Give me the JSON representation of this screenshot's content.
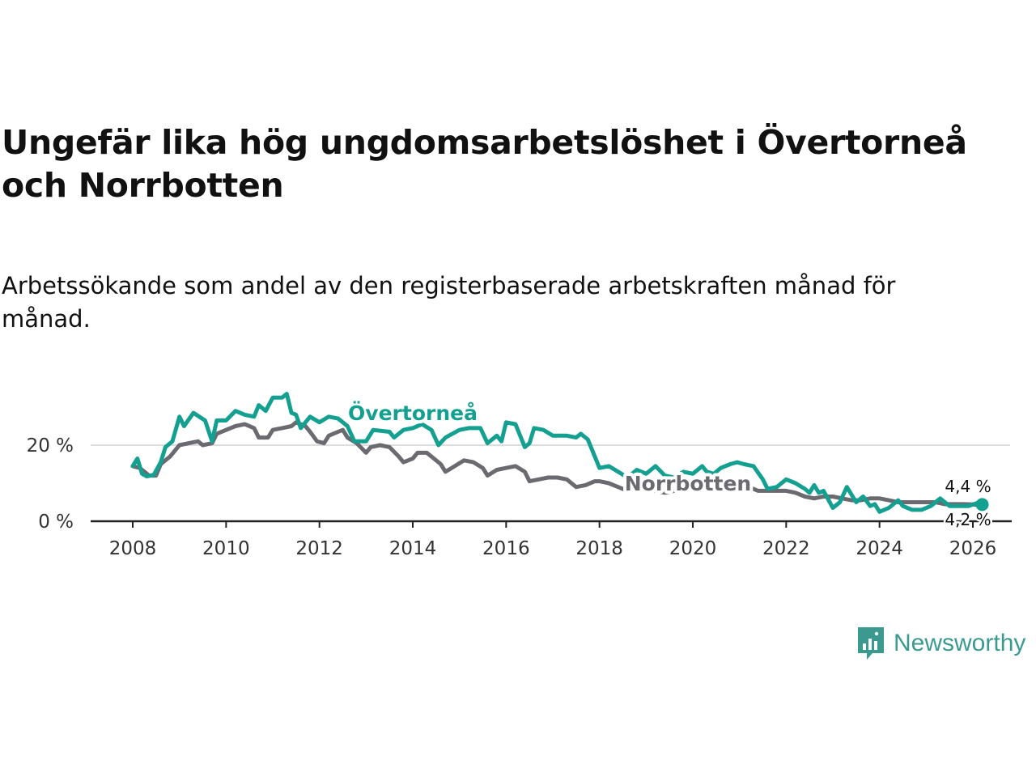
{
  "title": "Ungefär lika hög ungdomsarbetslöshet i Övertorneå och Norrbotten",
  "subtitle": "Arbetssökande som andel av den registerbaserade arbetskraften månad för månad.",
  "logo": {
    "text": "Newsworthy",
    "icon": "bar-chart-speech-bubble-icon",
    "color": "#3a9a8f"
  },
  "chart_data": {
    "type": "line",
    "title": "",
    "xlabel": "",
    "ylabel": "",
    "xlim": [
      2007.9,
      2026.3
    ],
    "ylim": [
      0,
      35
    ],
    "x_ticks": [
      2008,
      2010,
      2012,
      2014,
      2016,
      2018,
      2020,
      2022,
      2024,
      2026
    ],
    "x_tick_labels": [
      "2008",
      "2010",
      "2012",
      "2014",
      "2016",
      "2018",
      "2020",
      "2022",
      "2024",
      "2026"
    ],
    "y_ticks": [
      0,
      20
    ],
    "y_tick_labels": [
      "0 %",
      "20 %"
    ],
    "grid": "horizontal",
    "series": [
      {
        "name": "Övertorneå",
        "label": "Övertorneå",
        "color": "#14a090",
        "end_label": "4,4 %",
        "points": [
          [
            2008.0,
            14.5
          ],
          [
            2008.1,
            16.5
          ],
          [
            2008.2,
            12.5
          ],
          [
            2008.3,
            11.8
          ],
          [
            2008.45,
            12.2
          ],
          [
            2008.6,
            15.5
          ],
          [
            2008.7,
            19.5
          ],
          [
            2008.85,
            21
          ],
          [
            2009.0,
            27.5
          ],
          [
            2009.1,
            25
          ],
          [
            2009.3,
            28.5
          ],
          [
            2009.55,
            26.5
          ],
          [
            2009.7,
            21
          ],
          [
            2009.8,
            26.5
          ],
          [
            2010.0,
            26.5
          ],
          [
            2010.2,
            29
          ],
          [
            2010.4,
            28
          ],
          [
            2010.6,
            27.5
          ],
          [
            2010.7,
            30.5
          ],
          [
            2010.85,
            29
          ],
          [
            2011.0,
            32.5
          ],
          [
            2011.2,
            32.5
          ],
          [
            2011.3,
            33.5
          ],
          [
            2011.4,
            28.5
          ],
          [
            2011.5,
            28
          ],
          [
            2011.6,
            24.5
          ],
          [
            2011.8,
            27.5
          ],
          [
            2012.0,
            26
          ],
          [
            2012.2,
            27.5
          ],
          [
            2012.4,
            27
          ],
          [
            2012.6,
            25
          ],
          [
            2012.75,
            21
          ],
          [
            2013.0,
            21
          ],
          [
            2013.15,
            24
          ],
          [
            2013.5,
            23.5
          ],
          [
            2013.6,
            22
          ],
          [
            2013.8,
            24
          ],
          [
            2014.0,
            24.5
          ],
          [
            2014.2,
            25.5
          ],
          [
            2014.4,
            24
          ],
          [
            2014.55,
            20
          ],
          [
            2014.7,
            22
          ],
          [
            2015.0,
            24
          ],
          [
            2015.2,
            24.5
          ],
          [
            2015.45,
            24.5
          ],
          [
            2015.6,
            20.5
          ],
          [
            2015.8,
            22.5
          ],
          [
            2015.9,
            21
          ],
          [
            2016.0,
            26
          ],
          [
            2016.2,
            25.5
          ],
          [
            2016.4,
            19.5
          ],
          [
            2016.5,
            20.5
          ],
          [
            2016.6,
            24.5
          ],
          [
            2016.8,
            24
          ],
          [
            2017.0,
            22.5
          ],
          [
            2017.3,
            22.5
          ],
          [
            2017.5,
            22
          ],
          [
            2017.6,
            23
          ],
          [
            2017.75,
            21.5
          ],
          [
            2017.9,
            17
          ],
          [
            2018.0,
            14
          ],
          [
            2018.2,
            14.5
          ],
          [
            2018.4,
            13
          ],
          [
            2018.6,
            11.5
          ],
          [
            2018.8,
            13.5
          ],
          [
            2019.0,
            12.5
          ],
          [
            2019.2,
            14.5
          ],
          [
            2019.4,
            12
          ],
          [
            2019.6,
            11.5
          ],
          [
            2019.8,
            13
          ],
          [
            2020.0,
            12.5
          ],
          [
            2020.2,
            14.5
          ],
          [
            2020.3,
            13
          ],
          [
            2020.45,
            12.5
          ],
          [
            2020.6,
            14
          ],
          [
            2020.8,
            15
          ],
          [
            2020.95,
            15.5
          ],
          [
            2021.1,
            15
          ],
          [
            2021.3,
            14.5
          ],
          [
            2021.5,
            11
          ],
          [
            2021.6,
            8.5
          ],
          [
            2021.8,
            9
          ],
          [
            2022.0,
            11
          ],
          [
            2022.2,
            10
          ],
          [
            2022.4,
            8.5
          ],
          [
            2022.5,
            7.5
          ],
          [
            2022.6,
            9.5
          ],
          [
            2022.7,
            7.5
          ],
          [
            2022.8,
            8
          ],
          [
            2023.0,
            3.5
          ],
          [
            2023.15,
            5
          ],
          [
            2023.3,
            9
          ],
          [
            2023.5,
            5
          ],
          [
            2023.65,
            6.5
          ],
          [
            2023.8,
            4
          ],
          [
            2023.9,
            4.5
          ],
          [
            2024.0,
            2.5
          ],
          [
            2024.2,
            3.5
          ],
          [
            2024.4,
            5.5
          ],
          [
            2024.5,
            4
          ],
          [
            2024.7,
            3
          ],
          [
            2024.9,
            3
          ],
          [
            2025.1,
            4
          ],
          [
            2025.3,
            6
          ],
          [
            2025.5,
            4
          ],
          [
            2025.7,
            4
          ],
          [
            2025.9,
            4
          ],
          [
            2026.1,
            4.8
          ],
          [
            2026.2,
            4.4
          ]
        ]
      },
      {
        "name": "Norrbotten",
        "label": "Norrbotten",
        "color": "#6b6a70",
        "end_label": "4,2 %",
        "points": [
          [
            2008.0,
            14.5
          ],
          [
            2008.15,
            14
          ],
          [
            2008.35,
            12
          ],
          [
            2008.5,
            12
          ],
          [
            2008.6,
            15
          ],
          [
            2008.8,
            17
          ],
          [
            2009.0,
            20
          ],
          [
            2009.2,
            20.5
          ],
          [
            2009.4,
            21
          ],
          [
            2009.5,
            20
          ],
          [
            2009.7,
            20.5
          ],
          [
            2009.8,
            23
          ],
          [
            2010.0,
            24
          ],
          [
            2010.2,
            25
          ],
          [
            2010.4,
            25.5
          ],
          [
            2010.6,
            24.5
          ],
          [
            2010.7,
            22
          ],
          [
            2010.9,
            22
          ],
          [
            2011.0,
            24
          ],
          [
            2011.2,
            24.5
          ],
          [
            2011.4,
            25
          ],
          [
            2011.5,
            26
          ],
          [
            2011.7,
            25
          ],
          [
            2011.8,
            23.5
          ],
          [
            2011.95,
            21
          ],
          [
            2012.1,
            20.5
          ],
          [
            2012.2,
            22.5
          ],
          [
            2012.4,
            23.5
          ],
          [
            2012.5,
            24
          ],
          [
            2012.6,
            22
          ],
          [
            2012.8,
            20.5
          ],
          [
            2013.0,
            18
          ],
          [
            2013.1,
            19.5
          ],
          [
            2013.3,
            20
          ],
          [
            2013.5,
            19.5
          ],
          [
            2013.7,
            17
          ],
          [
            2013.8,
            15.5
          ],
          [
            2014.0,
            16.5
          ],
          [
            2014.1,
            18
          ],
          [
            2014.3,
            18
          ],
          [
            2014.4,
            17
          ],
          [
            2014.6,
            15
          ],
          [
            2014.7,
            13
          ],
          [
            2014.9,
            14.5
          ],
          [
            2015.1,
            16
          ],
          [
            2015.3,
            15.5
          ],
          [
            2015.5,
            14
          ],
          [
            2015.6,
            12
          ],
          [
            2015.8,
            13.5
          ],
          [
            2016.0,
            14
          ],
          [
            2016.2,
            14.5
          ],
          [
            2016.4,
            13
          ],
          [
            2016.5,
            10.5
          ],
          [
            2016.7,
            11
          ],
          [
            2016.9,
            11.5
          ],
          [
            2017.1,
            11.5
          ],
          [
            2017.3,
            11
          ],
          [
            2017.5,
            9
          ],
          [
            2017.7,
            9.5
          ],
          [
            2017.9,
            10.5
          ],
          [
            2018.0,
            10.5
          ],
          [
            2018.2,
            10
          ],
          [
            2018.4,
            9
          ],
          [
            2018.6,
            8
          ],
          [
            2018.8,
            8.5
          ],
          [
            2019.0,
            8.5
          ],
          [
            2019.2,
            8
          ],
          [
            2019.4,
            7.5
          ],
          [
            2019.6,
            8
          ],
          [
            2019.8,
            9
          ],
          [
            2020.0,
            10
          ],
          [
            2020.2,
            11
          ],
          [
            2020.4,
            10
          ],
          [
            2020.6,
            10.5
          ],
          [
            2020.8,
            10.5
          ],
          [
            2021.0,
            10
          ],
          [
            2021.2,
            9
          ],
          [
            2021.4,
            8
          ],
          [
            2021.6,
            8
          ],
          [
            2021.8,
            8
          ],
          [
            2022.0,
            8
          ],
          [
            2022.2,
            7.5
          ],
          [
            2022.4,
            6.5
          ],
          [
            2022.6,
            6
          ],
          [
            2022.8,
            6.5
          ],
          [
            2023.0,
            6.5
          ],
          [
            2023.2,
            6
          ],
          [
            2023.4,
            5.5
          ],
          [
            2023.6,
            5.5
          ],
          [
            2023.8,
            6
          ],
          [
            2024.0,
            6
          ],
          [
            2024.2,
            5.5
          ],
          [
            2024.4,
            5
          ],
          [
            2024.6,
            5
          ],
          [
            2024.8,
            5
          ],
          [
            2025.0,
            5
          ],
          [
            2025.2,
            5
          ],
          [
            2025.4,
            4.5
          ],
          [
            2025.6,
            4.5
          ],
          [
            2025.8,
            4.5
          ],
          [
            2026.0,
            4.4
          ],
          [
            2026.2,
            4.2
          ]
        ]
      }
    ]
  }
}
